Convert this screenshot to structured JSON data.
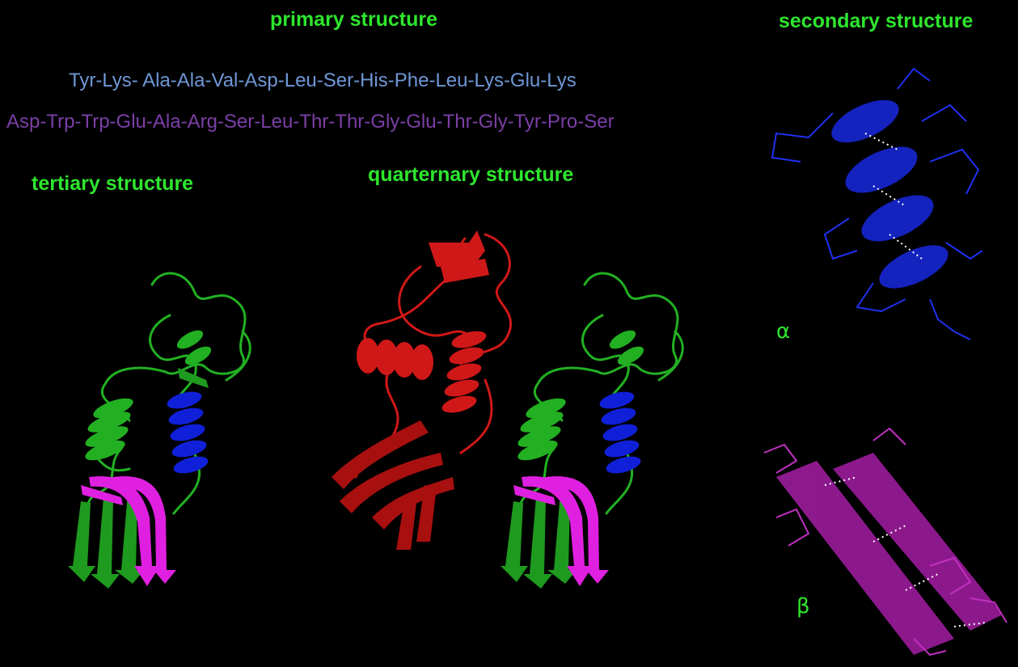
{
  "labels": {
    "primary": "primary structure",
    "secondary": "secondary structure",
    "tertiary": "tertiary structure",
    "quaternary": "quarternary structure",
    "alpha": "α",
    "beta": "β"
  },
  "sequence": {
    "line1": "Tyr-Lys- Ala-Ala-Val-Asp-Leu-Ser-His-Phe-Leu-Lys-Glu-Lys",
    "line2": "Asp-Trp-Trp-Glu-Ala-Arg-Ser-Leu-Thr-Thr-Gly-Glu-Thr-Gly-Tyr-Pro-Ser"
  },
  "colors": {
    "label": "#2ee62e",
    "sequence_line1": "#6f97d6",
    "sequence_line2": "#7b3fa6",
    "ribbon_green": "#22b022",
    "helix_blue": "#1020d8",
    "sheet_magenta": "#e020e0",
    "quaternary_red": "#d01818",
    "alpha_model": "#1828e0",
    "beta_model": "#b020b0"
  }
}
